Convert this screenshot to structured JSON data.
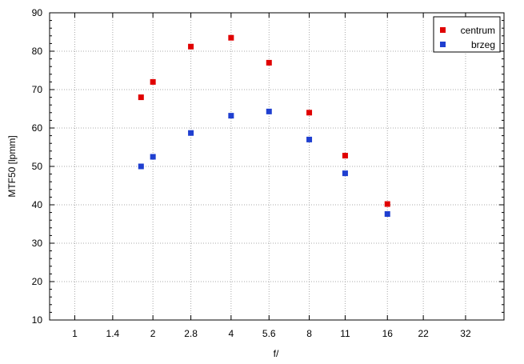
{
  "chart_data": {
    "type": "scatter",
    "title": "",
    "xlabel": "f/",
    "ylabel": "MTF50 [lpmm]",
    "x_scale": "log",
    "x_ticks": [
      "1",
      "1.4",
      "2",
      "2.8",
      "4",
      "5.6",
      "8",
      "11",
      "16",
      "22",
      "32"
    ],
    "x_tick_values": [
      1,
      1.4,
      2,
      2.8,
      4,
      5.6,
      8,
      11,
      16,
      22,
      32
    ],
    "xlim": [
      0.8,
      45
    ],
    "ylim": [
      10,
      90
    ],
    "y_ticks": [
      10,
      20,
      30,
      40,
      50,
      60,
      70,
      80,
      90
    ],
    "grid": true,
    "legend_position": "top-right",
    "series": [
      {
        "name": "centrum",
        "color": "#e00000",
        "x": [
          1.8,
          2,
          2.8,
          4,
          5.6,
          8,
          11,
          16
        ],
        "y": [
          68,
          72,
          81.2,
          83.5,
          77,
          64,
          52.8,
          40.2
        ]
      },
      {
        "name": "brzeg",
        "color": "#1f3fd0",
        "x": [
          1.8,
          2,
          2.8,
          4,
          5.6,
          8,
          11,
          16
        ],
        "y": [
          50,
          52.5,
          58.7,
          63.2,
          64.3,
          57,
          48.2,
          37.6
        ]
      }
    ]
  }
}
